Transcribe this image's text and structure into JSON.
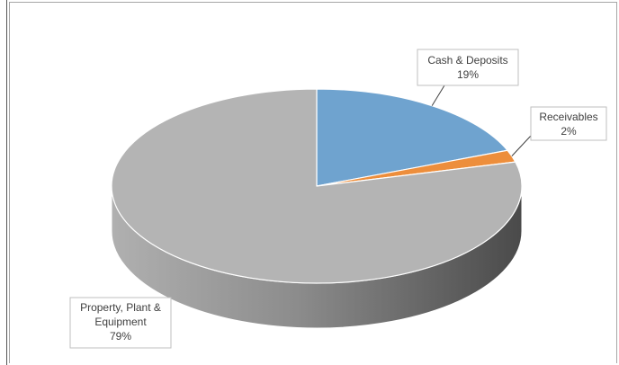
{
  "chart_data": {
    "type": "pie",
    "style": "3d",
    "slices": [
      {
        "label": "Cash & Deposits",
        "value": 19,
        "pct_label": "19%",
        "color": "#6fa3cf"
      },
      {
        "label": "Receivables",
        "value": 2,
        "pct_label": "2%",
        "color": "#ed8e3c"
      },
      {
        "label": "Property, Plant & Equipment",
        "value": 79,
        "pct_label": "79%",
        "color": "#b4b4b4"
      }
    ]
  }
}
